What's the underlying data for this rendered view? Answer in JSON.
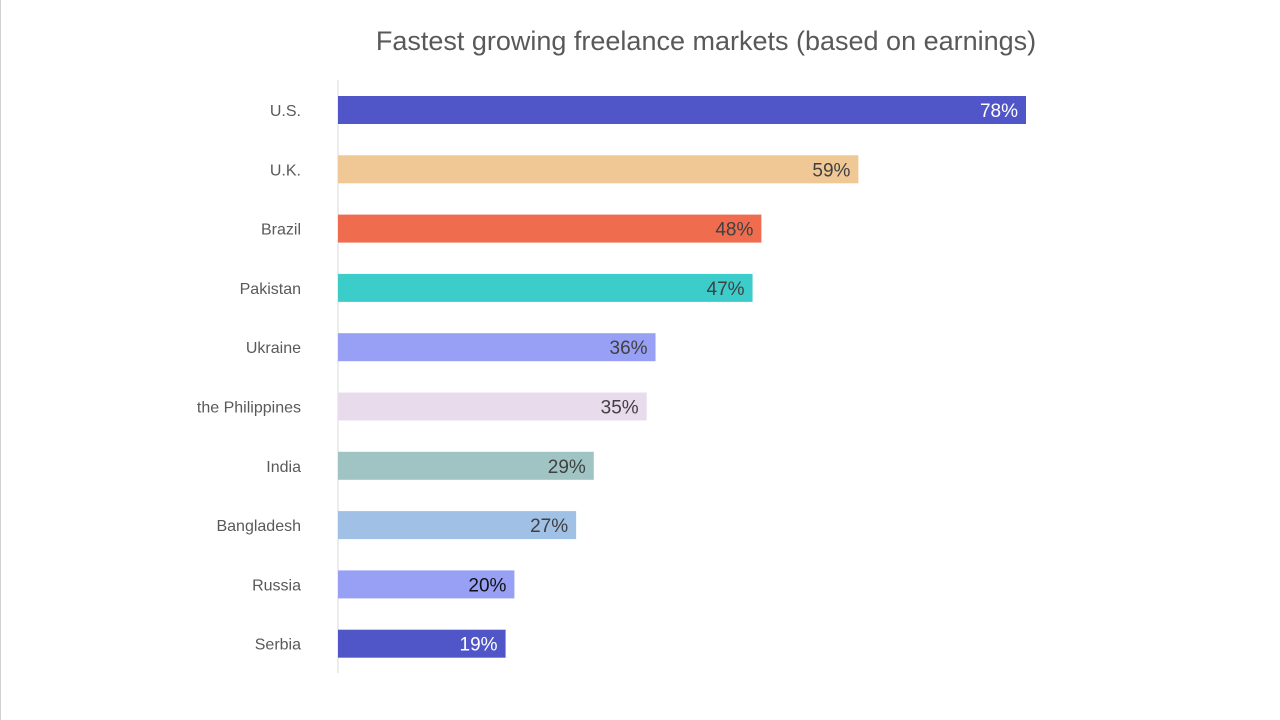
{
  "chart_data": {
    "type": "bar",
    "orientation": "horizontal",
    "title": "Fastest growing freelance markets (based on earnings)",
    "categories": [
      "U.S.",
      "U.K.",
      "Brazil",
      "Pakistan",
      "Ukraine",
      "the Philippines",
      "India",
      "Bangladesh",
      "Russia",
      "Serbia"
    ],
    "values": [
      78,
      59,
      48,
      47,
      36,
      35,
      29,
      27,
      20,
      19
    ],
    "data_labels": [
      "78%",
      "59%",
      "48%",
      "47%",
      "36%",
      "35%",
      "29%",
      "27%",
      "20%",
      "19%"
    ],
    "colors": [
      "#5056c8",
      "#f0c896",
      "#ef6c4f",
      "#3ccdcb",
      "#97a0f5",
      "#e8dcec",
      "#a0c4c4",
      "#a0c0e6",
      "#97a0f5",
      "#5056c8"
    ],
    "label_colors": [
      "#ffffff",
      "#404040",
      "#404040",
      "#404040",
      "#404040",
      "#404040",
      "#404040",
      "#404040",
      "#111111",
      "#ffffff"
    ],
    "xlim": [
      0,
      100
    ],
    "grid": false,
    "legend": "none",
    "xlabel": "",
    "ylabel": ""
  }
}
